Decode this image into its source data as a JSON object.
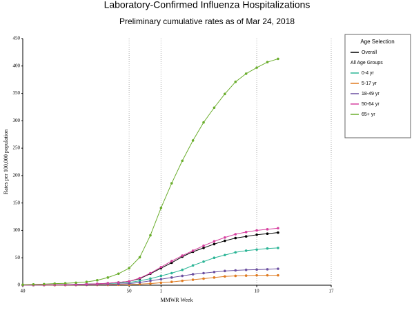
{
  "chart_data": {
    "type": "line",
    "title": "Laboratory-Confirmed Influenza Hospitalizations",
    "subtitle": "Preliminary cumulative rates as of Mar 24, 2018",
    "x_label": "MMWR Week",
    "y_label": "Rates per 100,000 population",
    "x": [
      40,
      41,
      42,
      43,
      44,
      45,
      46,
      47,
      48,
      49,
      50,
      51,
      52,
      53,
      54,
      55,
      56,
      57,
      58,
      59,
      60,
      61,
      62,
      63,
      64
    ],
    "xlim": [
      40,
      69
    ],
    "xticks": [
      40,
      50,
      {
        "value": 53,
        "label": "1"
      },
      {
        "value": 62,
        "label": "10"
      },
      {
        "value": 69,
        "label": "17"
      }
    ],
    "ylim": [
      0,
      450
    ],
    "yticks": [
      0,
      50,
      100,
      150,
      200,
      250,
      300,
      350,
      400,
      450
    ],
    "grid": true,
    "legend_title": "Age Selection",
    "legend_group": "All Age Groups",
    "series": [
      {
        "name": "Overall",
        "color": "#000000",
        "values": [
          0.3,
          0.4,
          0.6,
          0.8,
          1,
          1.5,
          2,
          2.5,
          3.5,
          5,
          7,
          12,
          21,
          31,
          41,
          52,
          61,
          68,
          75,
          81,
          86,
          89,
          92,
          94,
          96
        ]
      },
      {
        "name": "0-4 yr",
        "color": "#2bb596",
        "values": [
          0.2,
          0.4,
          0.6,
          0.8,
          1,
          1.4,
          2,
          2.5,
          3,
          4,
          5,
          8,
          12,
          17,
          22,
          28,
          36,
          43,
          50,
          55,
          60,
          63,
          65,
          67,
          68
        ]
      },
      {
        "name": "5-17 yr",
        "color": "#e07b20",
        "values": [
          0.1,
          0.1,
          0.2,
          0.2,
          0.3,
          0.3,
          0.4,
          0.5,
          0.6,
          0.8,
          1,
          2,
          3,
          4.5,
          6,
          8,
          10,
          12,
          14,
          16,
          17,
          17.5,
          18,
          18,
          18
        ]
      },
      {
        "name": "18-49 yr",
        "color": "#6b4fa0",
        "values": [
          0.1,
          0.2,
          0.3,
          0.4,
          0.5,
          0.7,
          1,
          1.2,
          1.6,
          2.2,
          3,
          5,
          8,
          11,
          14,
          17,
          20,
          22,
          24,
          26,
          27,
          28,
          28.5,
          29,
          30
        ]
      },
      {
        "name": "50-64 yr",
        "color": "#d6409f",
        "values": [
          0.3,
          0.4,
          0.6,
          0.8,
          1,
          1.4,
          2,
          2.6,
          3.6,
          5,
          7,
          13,
          22,
          33,
          44,
          54,
          63,
          72,
          80,
          87,
          93,
          97,
          100,
          102,
          104
        ]
      },
      {
        "name": "65+ yr",
        "color": "#6aad2c",
        "values": [
          1,
          1.5,
          2,
          3,
          3.5,
          4.5,
          6,
          9,
          14,
          21,
          31,
          51,
          91,
          141,
          186,
          227,
          264,
          297,
          324,
          349,
          371,
          386,
          397,
          407,
          413
        ]
      }
    ]
  }
}
